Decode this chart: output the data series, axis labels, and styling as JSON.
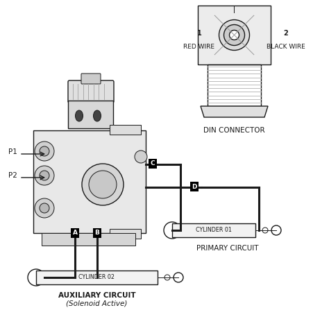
{
  "bg_color": "#ffffff",
  "ec": "#1a1a1a",
  "lw_thin": 0.7,
  "lw_med": 1.0,
  "lw_thick": 2.2,
  "label_A": "A",
  "label_B": "B",
  "label_C": "C",
  "label_D": "D",
  "label_P1": "P1",
  "label_P2": "P2",
  "label_1": "1",
  "label_2": "2",
  "label_red_wire": "RED WIRE",
  "label_black_wire": "BLACK WIRE",
  "label_din": "DIN CONNECTOR",
  "label_cyl01": "CYLINDER 01",
  "label_cyl02": "CYLINDER 02",
  "label_primary": "PRIMARY CIRCUIT",
  "label_auxiliary": "AUXILIARY CIRCUIT",
  "label_solenoid": "(Solenoid Active)"
}
